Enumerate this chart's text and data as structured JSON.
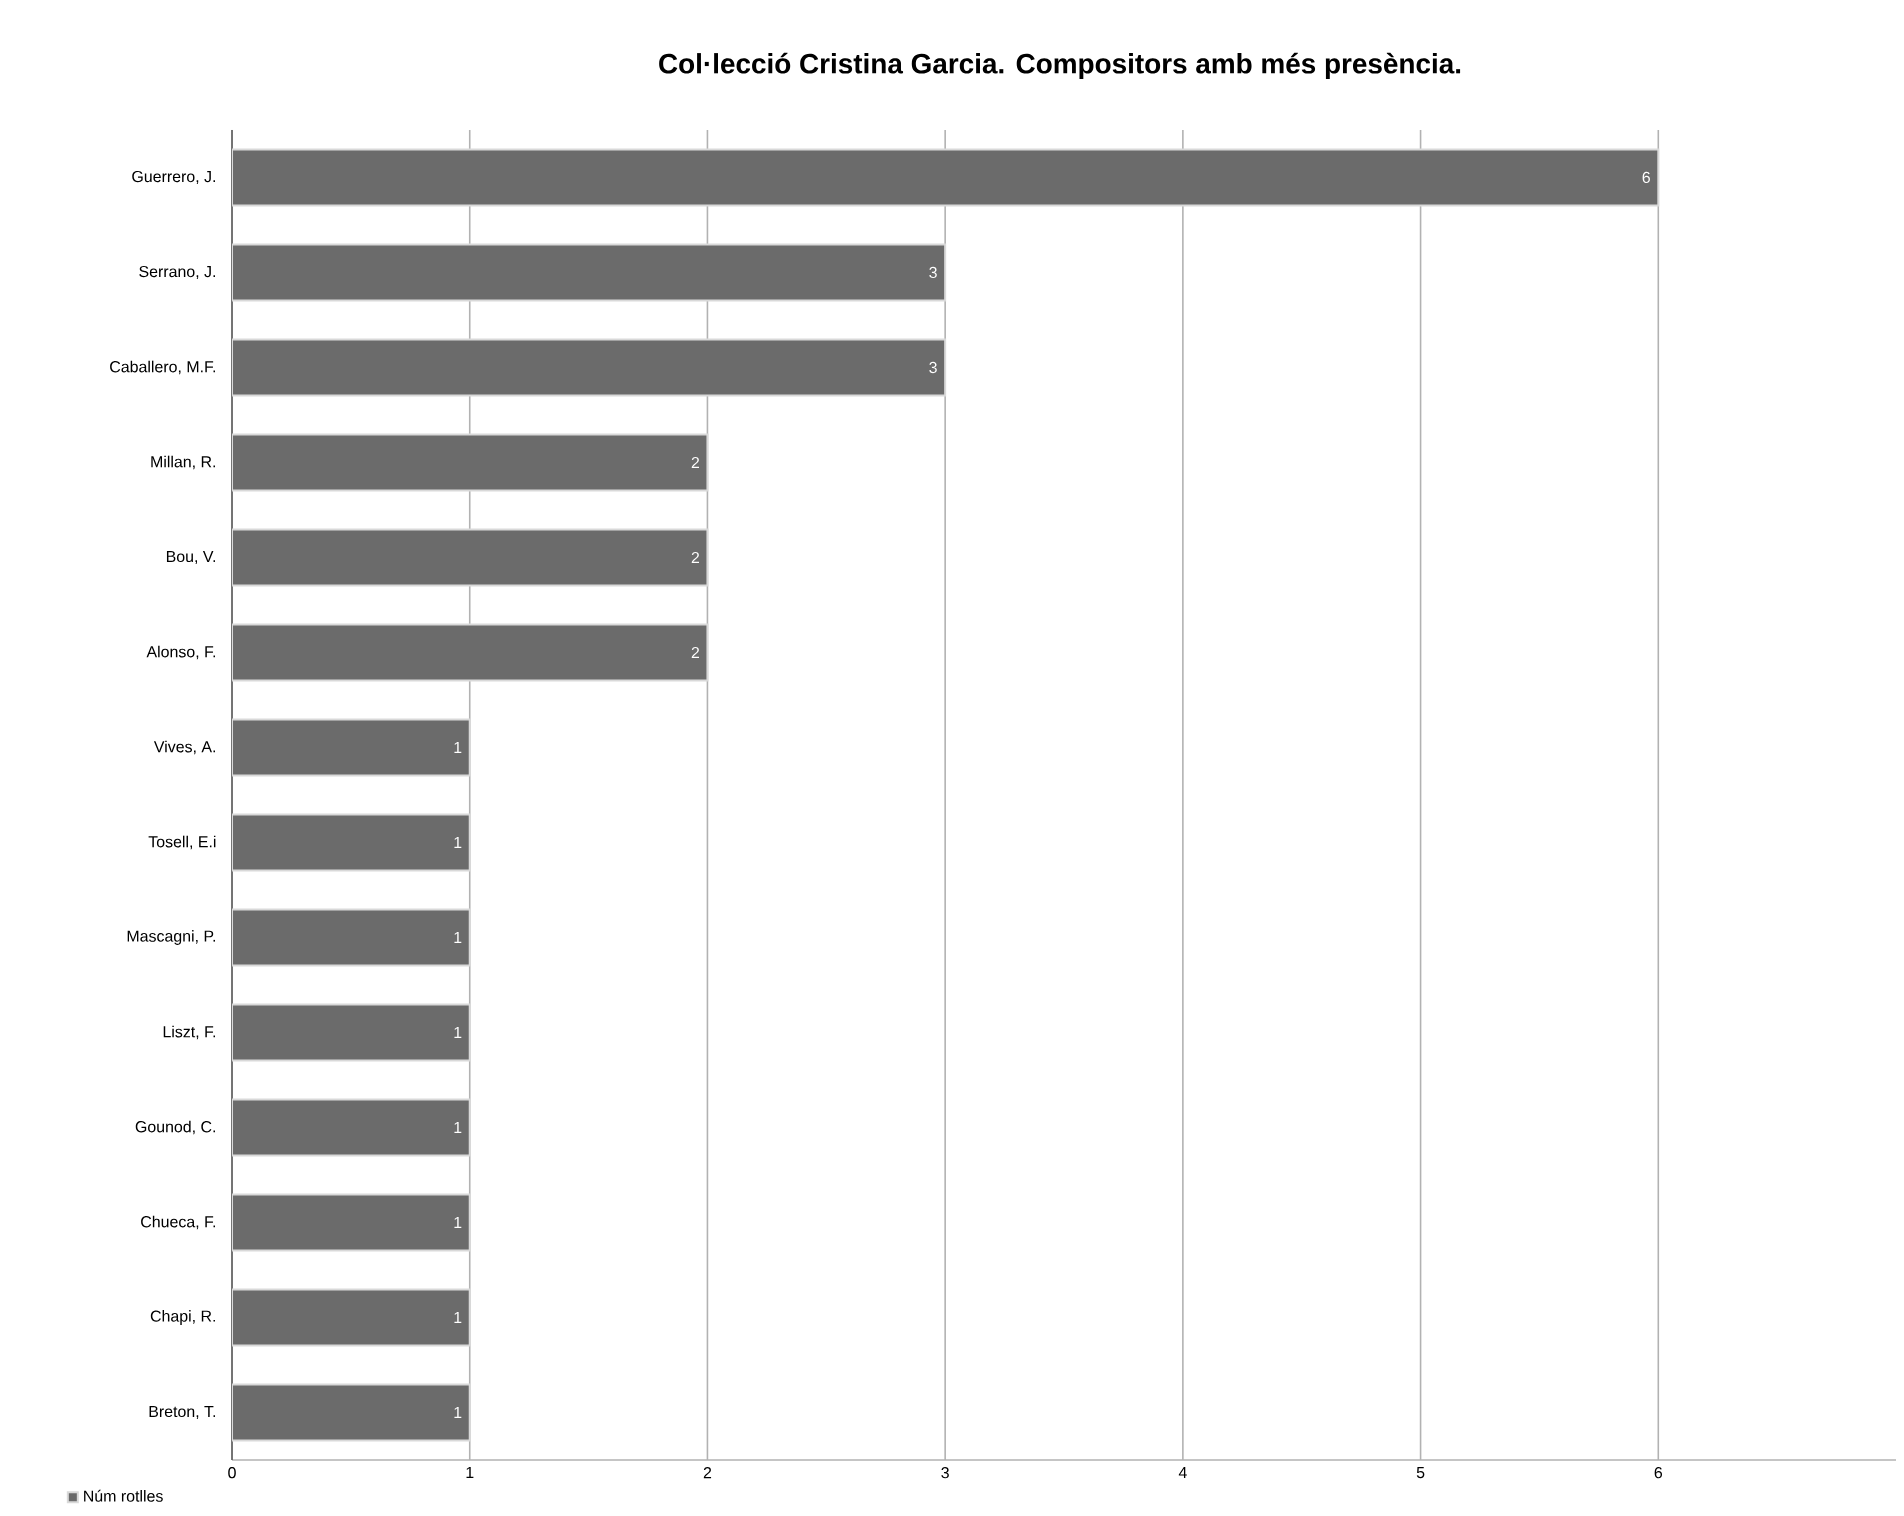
{
  "chart_data": {
    "type": "bar",
    "orientation": "horizontal",
    "title": "Col·lecció Cristina Garcia. Compositors amb més presència.",
    "categories": [
      "Guerrero, J.",
      "Serrano, J.",
      "Caballero, M.F.",
      "Millan, R.",
      "Bou, V.",
      "Alonso, F.",
      "Vives, A.",
      "Tosell, E.i",
      "Mascagni, P.",
      "Liszt, F.",
      "Gounod, C.",
      "Chueca, F.",
      "Chapi, R.",
      "Breton, T."
    ],
    "series": [
      {
        "name": "Núm rotlles",
        "color": "#6b6b6b",
        "values": [
          6,
          3,
          3,
          2,
          2,
          2,
          1,
          1,
          1,
          1,
          1,
          1,
          1,
          1
        ]
      }
    ],
    "xlim": [
      0,
      7
    ],
    "xticks": [
      0,
      1,
      2,
      3,
      4,
      5,
      6
    ],
    "grid": "x",
    "legend": "bottom left",
    "data_labels": true
  }
}
